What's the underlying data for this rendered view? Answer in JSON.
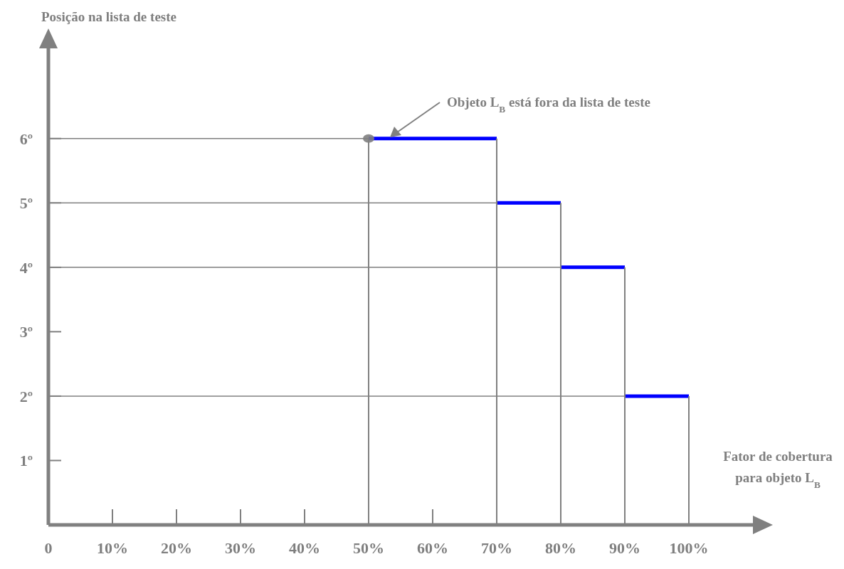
{
  "chart_data": {
    "type": "line",
    "ylabel": "Posição na lista de teste",
    "xlabel": "Fator de cobertura\npara objeto L$_{B}$",
    "annotations": [
      "Objeto L$_{B}$ está fora da lista de teste"
    ],
    "xlim": [
      0,
      110
    ],
    "ylim": [
      0,
      7.4
    ],
    "xticks": [
      0,
      {
        "value": 10,
        "label": "10%"
      },
      {
        "value": 20,
        "label": "20%"
      },
      {
        "value": 30,
        "label": "30%"
      },
      {
        "value": 40,
        "label": "40%"
      },
      {
        "value": 50,
        "label": "50%"
      },
      {
        "value": 60,
        "label": "60%"
      },
      {
        "value": 70,
        "label": "70%"
      },
      {
        "value": 80,
        "label": "80%"
      },
      {
        "value": 90,
        "label": "90%"
      },
      {
        "value": 100,
        "label": "100%"
      }
    ],
    "yticks": [
      {
        "value": 1,
        "label": "1º"
      },
      {
        "value": 2,
        "label": "2º"
      },
      {
        "value": 3,
        "label": "3º"
      },
      {
        "value": 4,
        "label": "4º"
      },
      {
        "value": 5,
        "label": "5º"
      },
      {
        "value": 6,
        "label": "6º"
      }
    ],
    "series": [
      {
        "color": "#808080",
        "x": [
          0,
          50
        ],
        "values": [
          6,
          6
        ]
      },
      {
        "color": "#808080",
        "x": [
          0,
          70
        ],
        "values": [
          5,
          5
        ]
      },
      {
        "color": "#808080",
        "x": [
          0,
          80
        ],
        "values": [
          4,
          4
        ]
      },
      {
        "color": "#808080",
        "x": [
          0,
          90
        ],
        "values": [
          2,
          2
        ]
      },
      {
        "type": "bar",
        "color": "#808080",
        "x": [
          50,
          70,
          80,
          90,
          100
        ],
        "values": [
          6,
          6,
          5,
          4,
          2
        ]
      },
      {
        "color": "#0000ff",
        "x": [
          50,
          70
        ],
        "values": [
          6,
          6
        ]
      },
      {
        "color": "#0000ff",
        "x": [
          70,
          80
        ],
        "values": [
          5,
          5
        ]
      },
      {
        "color": "#0000ff",
        "x": [
          80,
          90
        ],
        "values": [
          4,
          4
        ]
      },
      {
        "color": "#0000ff",
        "x": [
          90,
          100
        ],
        "values": [
          2,
          2
        ]
      },
      {
        "type": "scatter",
        "color": "#808080",
        "marker": "circle",
        "x": [
          50
        ],
        "values": [
          6
        ]
      }
    ]
  }
}
